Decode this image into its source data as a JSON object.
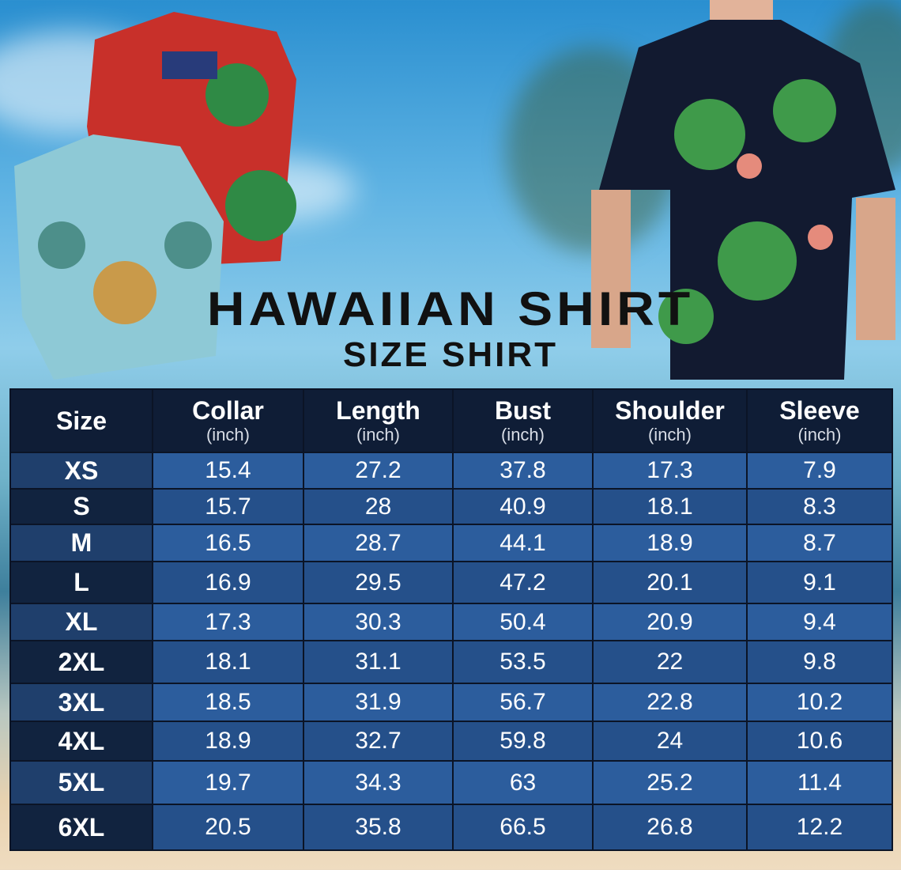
{
  "title": "HAWAIIAN SHIRT",
  "subtitle": "SIZE SHIRT",
  "colors": {
    "header_bg": "#0f1d36",
    "row_light": "#2c5d9d",
    "row_dark": "#25508a",
    "size_cell_light": "#1f3f6c",
    "size_cell_dark": "#11233f"
  },
  "table": {
    "columns": [
      {
        "label": "Size",
        "unit": ""
      },
      {
        "label": "Collar",
        "unit": "(inch)"
      },
      {
        "label": "Length",
        "unit": "(inch)"
      },
      {
        "label": "Bust",
        "unit": "(inch)"
      },
      {
        "label": "Shoulder",
        "unit": "(inch)"
      },
      {
        "label": "Sleeve",
        "unit": "(inch)"
      }
    ],
    "rows": [
      [
        "XS",
        "15.4",
        "27.2",
        "37.8",
        "17.3",
        "7.9"
      ],
      [
        "S",
        "15.7",
        "28",
        "40.9",
        "18.1",
        "8.3"
      ],
      [
        "M",
        "16.5",
        "28.7",
        "44.1",
        "18.9",
        "8.7"
      ],
      [
        "L",
        "16.9",
        "29.5",
        "47.2",
        "20.1",
        "9.1"
      ],
      [
        "XL",
        "17.3",
        "30.3",
        "50.4",
        "20.9",
        "9.4"
      ],
      [
        "2XL",
        "18.1",
        "31.1",
        "53.5",
        "22",
        "9.8"
      ],
      [
        "3XL",
        "18.5",
        "31.9",
        "56.7",
        "22.8",
        "10.2"
      ],
      [
        "4XL",
        "18.9",
        "32.7",
        "59.8",
        "24",
        "10.6"
      ],
      [
        "5XL",
        "19.7",
        "34.3",
        "63",
        "25.2",
        "11.4"
      ],
      [
        "6XL",
        "20.5",
        "35.8",
        "66.5",
        "26.8",
        "12.2"
      ]
    ]
  }
}
